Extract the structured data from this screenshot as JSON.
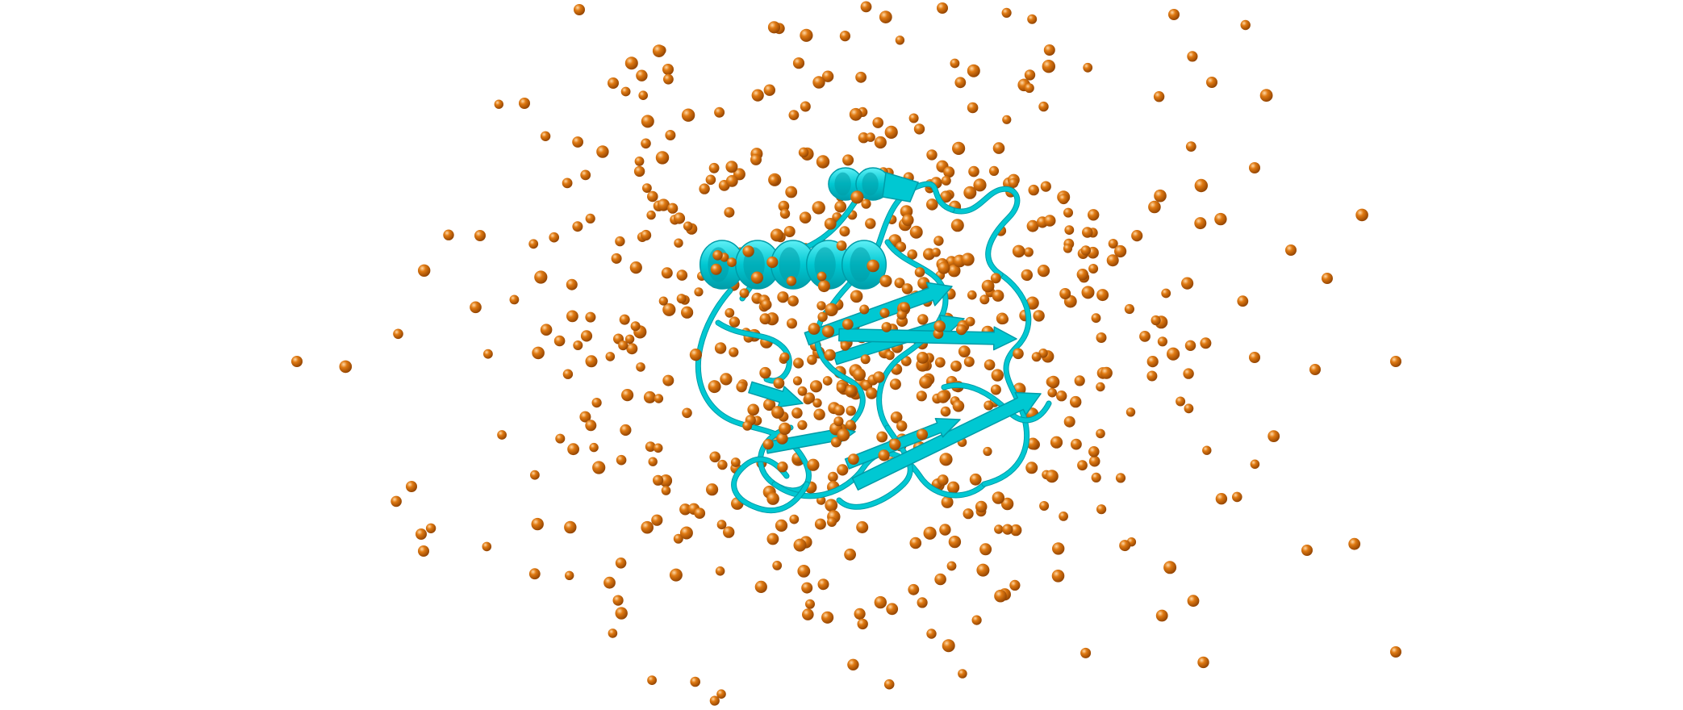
{
  "scene": {
    "background_color": "#ffffff",
    "structure_color": "#00c8d2",
    "structure_dark": "#009ca8",
    "structure_light": "#5ff0f6",
    "atom_color": "#e07a12",
    "atom_dark": "#8a3e00",
    "atom_highlight": "#ffd9a8",
    "icon": "protein-ribbon-with-water-spheres"
  }
}
